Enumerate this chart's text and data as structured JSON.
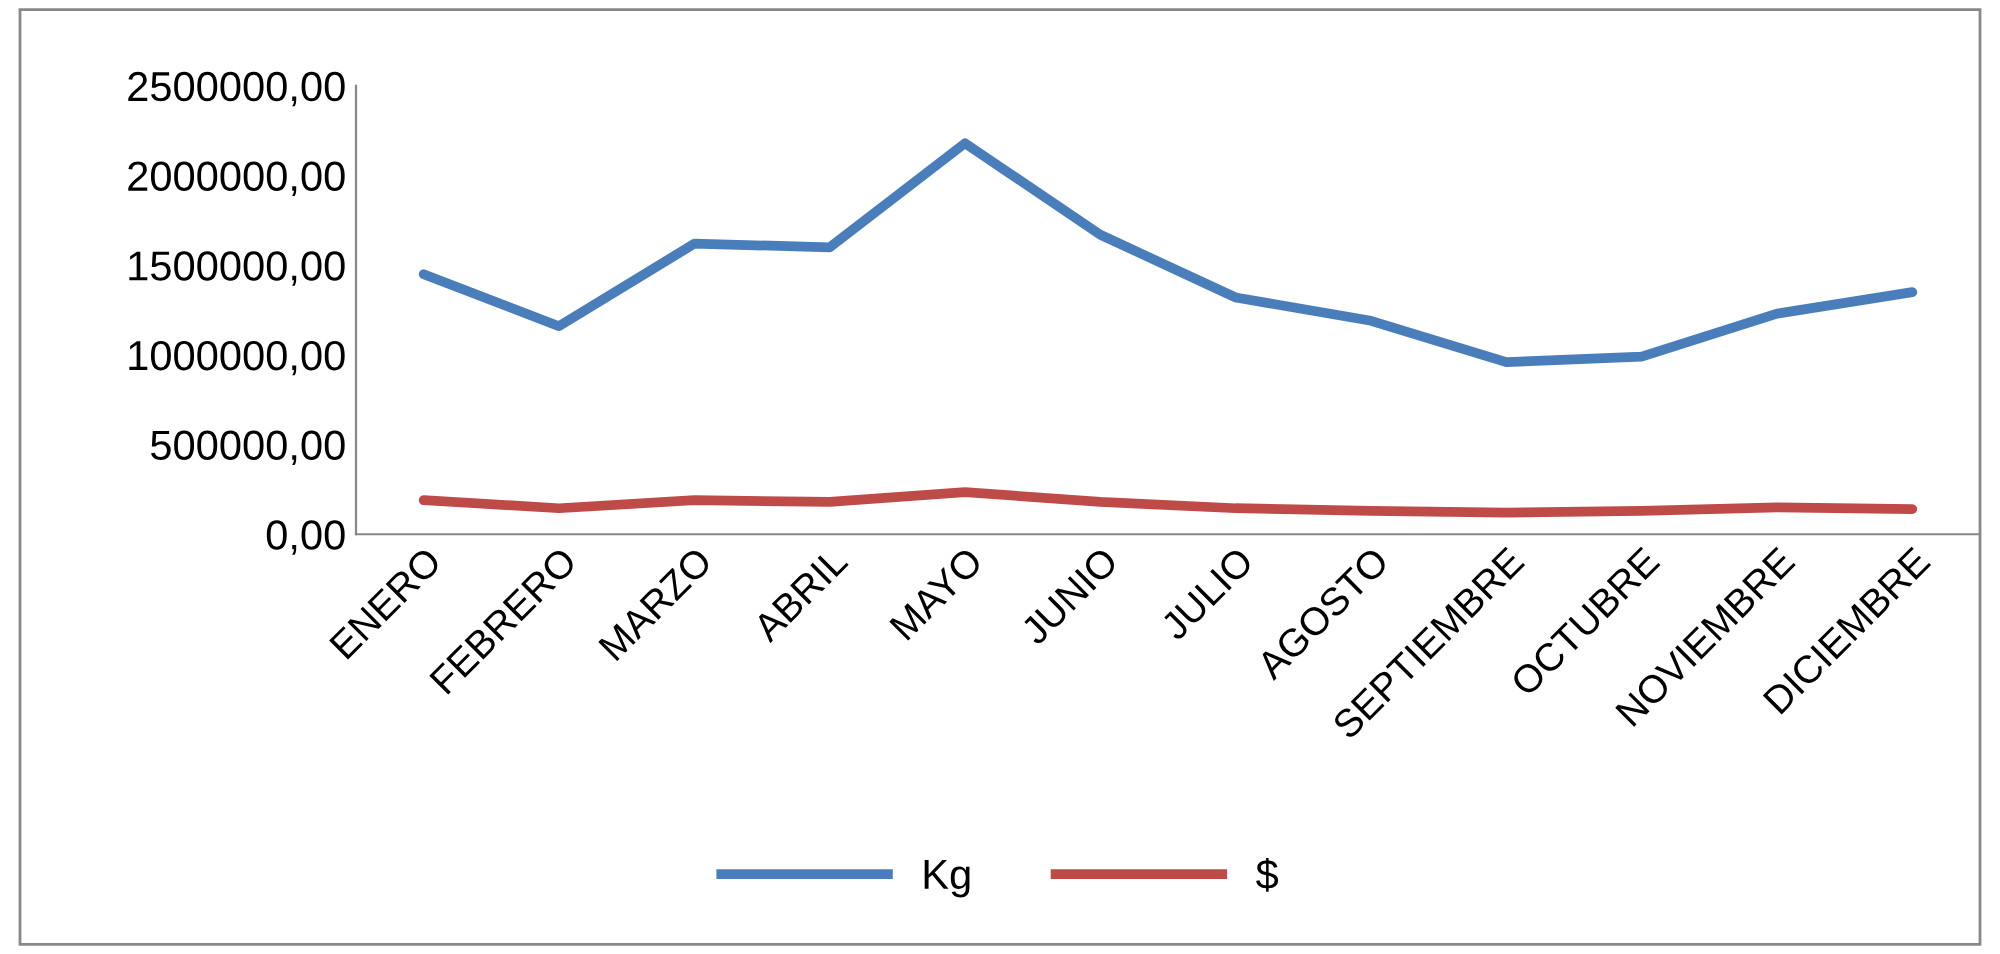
{
  "chart_data": {
    "type": "line",
    "categories": [
      "ENERO",
      "FEBRERO",
      "MARZO",
      "ABRIL",
      "MAYO",
      "JUNIO",
      "JULIO",
      "AGOSTO",
      "SEPTIEMBRE",
      "OCTUBRE",
      "NOVIEMBRE",
      "DICIEMBRE"
    ],
    "series": [
      {
        "name": "Kg",
        "color": "#4a7ebb",
        "values": [
          1450000,
          1160000,
          1620000,
          1600000,
          2180000,
          1670000,
          1320000,
          1190000,
          960000,
          990000,
          1230000,
          1350000
        ]
      },
      {
        "name": "$",
        "color": "#be4b48",
        "values": [
          190000,
          145000,
          190000,
          180000,
          235000,
          180000,
          145000,
          130000,
          120000,
          130000,
          150000,
          140000
        ]
      }
    ],
    "ylim": [
      0,
      2500000
    ],
    "yticks": [
      {
        "value": 0,
        "label": "0,00"
      },
      {
        "value": 500000,
        "label": "500000,00"
      },
      {
        "value": 1000000,
        "label": "1000000,00"
      },
      {
        "value": 1500000,
        "label": "1500000,00"
      },
      {
        "value": 2000000,
        "label": "2000000,00"
      },
      {
        "value": 2500000,
        "label": "2500000,00"
      }
    ],
    "grid": false,
    "legend": "bottom",
    "marker": "none",
    "line_style": "solid"
  }
}
